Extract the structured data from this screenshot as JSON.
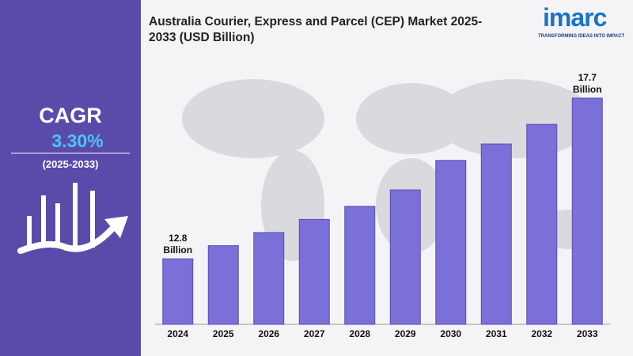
{
  "chart_data": {
    "type": "bar",
    "title": "Australia Courier, Express and Parcel (CEP) Market 2025-2033 (USD Billion)",
    "categories": [
      "2024",
      "2025",
      "2026",
      "2027",
      "2028",
      "2029",
      "2030",
      "2031",
      "2032",
      "2033"
    ],
    "values": [
      12.8,
      13.2,
      13.6,
      14.0,
      14.4,
      14.9,
      15.8,
      16.3,
      16.9,
      17.7
    ],
    "value_labels": [
      "12.8 Billion",
      null,
      null,
      null,
      null,
      null,
      null,
      null,
      null,
      "17.7 Billion"
    ],
    "color": "#7b6fd8",
    "ylim": [
      10.8,
      17.7
    ]
  },
  "cagr": {
    "label": "CAGR",
    "value": "3.30%",
    "period": "(2025-2033)"
  },
  "logo": {
    "name": "imarc",
    "tagline": "TRANSFORMING IDEAS INTO IMPACT"
  }
}
